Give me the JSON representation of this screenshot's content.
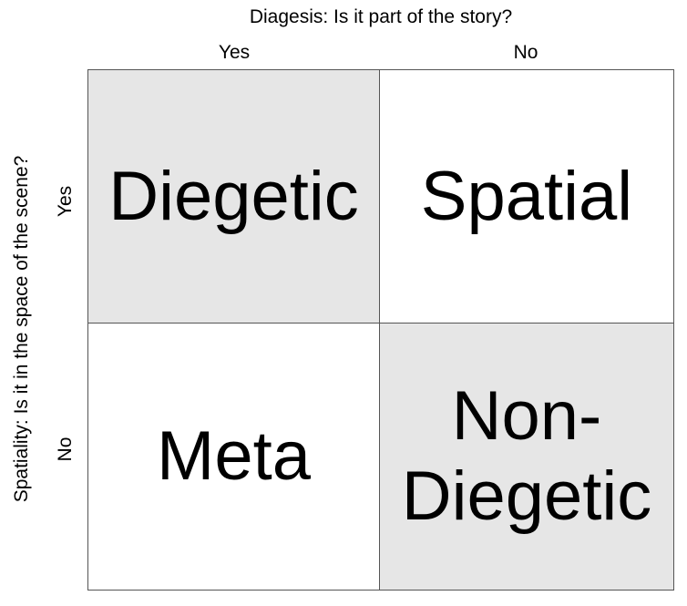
{
  "column_axis": {
    "title": "Diagesis: Is it part of the story?",
    "labels": [
      "Yes",
      "No"
    ]
  },
  "row_axis": {
    "title": "Spatiality: Is it in the space of the scene?",
    "labels": [
      "Yes",
      "No"
    ]
  },
  "cells": {
    "top_left": {
      "text": "Diegetic",
      "shaded": true
    },
    "top_right": {
      "text": "Spatial",
      "shaded": false
    },
    "bottom_left": {
      "text": "Meta",
      "shaded": false
    },
    "bottom_right": {
      "lines": [
        "Non-",
        "Diegetic"
      ],
      "shaded": true
    }
  },
  "colors": {
    "shaded_fill": "#e6e6e6",
    "border": "#555555",
    "text": "#000000"
  }
}
